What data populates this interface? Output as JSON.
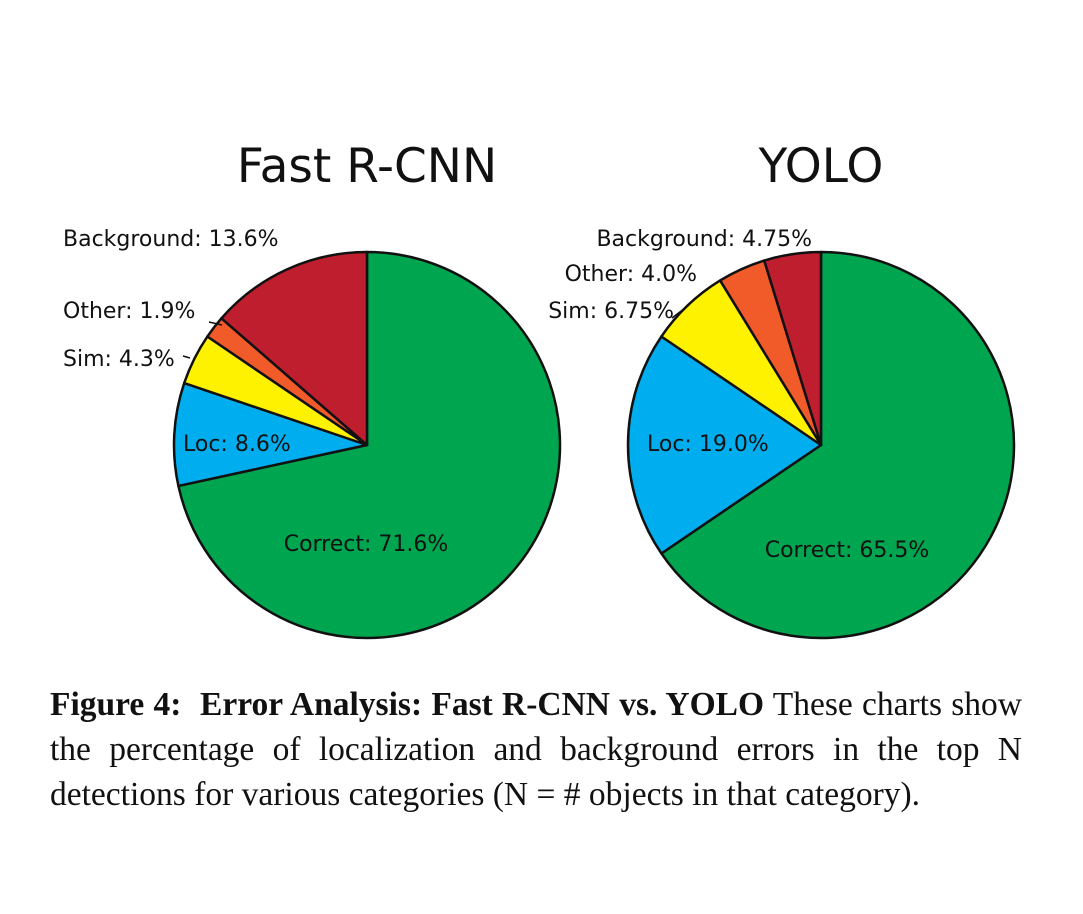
{
  "chart_data": [
    {
      "type": "pie",
      "title": "Fast R-CNN",
      "slices": [
        {
          "key": "correct",
          "name": "Correct",
          "value": 71.6,
          "label": "Correct: 71.6%",
          "color": "#00A550"
        },
        {
          "key": "loc",
          "name": "Loc",
          "value": 8.6,
          "label": "Loc: 8.6%",
          "color": "#00AEEF"
        },
        {
          "key": "sim",
          "name": "Sim",
          "value": 4.3,
          "label": "Sim: 4.3%",
          "color": "#FFF200"
        },
        {
          "key": "other",
          "name": "Other",
          "value": 1.9,
          "label": "Other: 1.9%",
          "color": "#F15A29"
        },
        {
          "key": "background",
          "name": "Background",
          "value": 13.6,
          "label": "Background: 13.6%",
          "color": "#BE1E2D"
        }
      ]
    },
    {
      "type": "pie",
      "title": "YOLO",
      "slices": [
        {
          "key": "correct",
          "name": "Correct",
          "value": 65.5,
          "label": "Correct: 65.5%",
          "color": "#00A550"
        },
        {
          "key": "loc",
          "name": "Loc",
          "value": 19.0,
          "label": "Loc: 19.0%",
          "color": "#00AEEF"
        },
        {
          "key": "sim",
          "name": "Sim",
          "value": 6.75,
          "label": "Sim: 6.75%",
          "color": "#FFF200"
        },
        {
          "key": "other",
          "name": "Other",
          "value": 4.0,
          "label": "Other: 4.0%",
          "color": "#F15A29"
        },
        {
          "key": "background",
          "name": "Background",
          "value": 4.75,
          "label": "Background: 4.75%",
          "color": "#BE1E2D"
        }
      ]
    }
  ],
  "caption": {
    "figure_label": "Figure 4:",
    "bold_title": "Error Analysis: Fast R-CNN vs. YOLO",
    "text": "These charts show the percentage of localization and background errors in the top N detections for various categories (N = # objects in that category)."
  }
}
